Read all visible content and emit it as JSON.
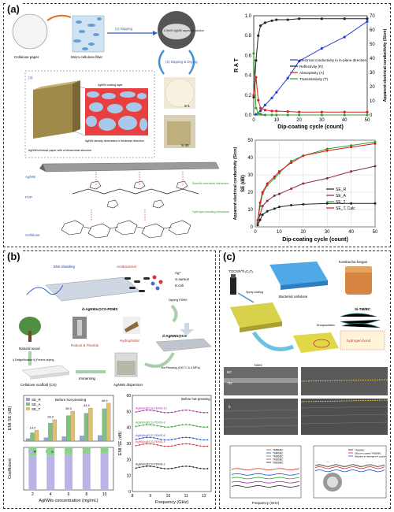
{
  "panel_a": {
    "tag": "(a)",
    "labels": {
      "cellulose_paper": "Cellulose paper",
      "micro_fiber": "Micro-cellulose fiber",
      "step1": "(1) Dipping",
      "step2": "(2) Dipping & Drying",
      "solution": "0.5wt% AgNW aqueous solution",
      "s1": "S-1",
      "s30": "S-30",
      "step3": "(3)",
      "coating": "AgNW coating layer",
      "density": "AgNW density decreases in thickness direction",
      "paper": "AgNW/cellulose paper with a hierarchical structure",
      "agnw": "AgNW",
      "pvp": "PVP",
      "cellulose": "Cellulose",
      "specific": "Specific interfacial interaction",
      "hbond": "Hydrogen bonding interaction"
    },
    "chart_rat": {
      "type": "line",
      "xlabel": "Dip-coating cycle (count)",
      "ylabel_left": "R A T",
      "ylabel_right": "Apparent electrical conductivity (S/cm)",
      "xlim": [
        0,
        50
      ],
      "ylim_left": [
        0.0,
        1.0
      ],
      "ylim_right": [
        0,
        70
      ],
      "xticks": [
        "0",
        "10",
        "20",
        "30",
        "40",
        "50"
      ],
      "yticks_left": [
        "0.0",
        "0.2",
        "0.4",
        "0.6",
        "0.8",
        "1.0"
      ],
      "yticks_right": [
        "0",
        "10",
        "20",
        "30",
        "40",
        "50",
        "60",
        "70"
      ],
      "legend": [
        "Electrical conductivity in in-plane direction",
        "Reflectivity (R)",
        "Absorptivity (A)",
        "Transmissivity (T)"
      ],
      "series": [
        {
          "name": "Electrical conductivity in in-plane direction",
          "axis": "right",
          "color": "#1f3fd6",
          "x": [
            1,
            3,
            5,
            8,
            10,
            15,
            20,
            30,
            40,
            50
          ],
          "y": [
            0.5,
            3,
            7,
            12,
            16,
            26,
            38,
            47,
            55,
            66
          ]
        },
        {
          "name": "Reflectivity (R)",
          "axis": "left",
          "color": "#222222",
          "x": [
            0,
            1,
            2,
            3,
            5,
            8,
            10,
            15,
            20,
            30,
            40,
            50
          ],
          "y": [
            0.18,
            0.55,
            0.8,
            0.9,
            0.93,
            0.95,
            0.96,
            0.96,
            0.97,
            0.97,
            0.97,
            0.97
          ]
        },
        {
          "name": "Absorptivity (A)",
          "axis": "left",
          "color": "#d62020",
          "x": [
            0,
            1,
            2,
            3,
            5,
            8,
            10,
            15,
            20,
            30,
            40,
            50
          ],
          "y": [
            0.2,
            0.38,
            0.15,
            0.07,
            0.05,
            0.04,
            0.04,
            0.035,
            0.03,
            0.03,
            0.03,
            0.03
          ]
        },
        {
          "name": "Transmissivity (T)",
          "axis": "left",
          "color": "#2fa32f",
          "x": [
            0,
            1,
            2,
            3,
            5,
            8,
            10,
            15,
            20,
            30,
            40,
            50
          ],
          "y": [
            0.62,
            0.07,
            0.02,
            0.01,
            0,
            0,
            0,
            0,
            0,
            0,
            0,
            0
          ]
        }
      ]
    },
    "chart_se": {
      "type": "line",
      "xlabel": "Dip-coating cycle (count)",
      "ylabel_left": "SE (dB)",
      "ylabel_right": "Apparent electrical conductivity (S/cm)",
      "xlim": [
        0,
        50
      ],
      "ylim": [
        0,
        50
      ],
      "xticks": [
        "0",
        "10",
        "20",
        "30",
        "40",
        "50"
      ],
      "yticks": [
        "0",
        "10",
        "20",
        "30",
        "40",
        "50"
      ],
      "legend": [
        "SE_R",
        "SE_A",
        "SE_T",
        "SE_T, Calc"
      ],
      "series": [
        {
          "name": "SE_R",
          "color": "#222222",
          "x": [
            1,
            2,
            3,
            5,
            8,
            10,
            15,
            20,
            30,
            40,
            50
          ],
          "y": [
            1,
            4,
            7,
            9,
            10.5,
            11.5,
            12.5,
            13,
            13.5,
            13.5,
            13.5
          ]
        },
        {
          "name": "SE_A",
          "color": "#8a2a4a",
          "x": [
            1,
            2,
            3,
            5,
            8,
            10,
            15,
            20,
            30,
            40,
            50
          ],
          "y": [
            2,
            7,
            12,
            15,
            18,
            19,
            22,
            25,
            28,
            32,
            35
          ]
        },
        {
          "name": "SE_T",
          "color": "#2fa32f",
          "x": [
            1,
            2,
            3,
            5,
            8,
            10,
            15,
            20,
            30,
            40,
            50
          ],
          "y": [
            3,
            12,
            19,
            24,
            28,
            31,
            38,
            41,
            45,
            47,
            49
          ]
        },
        {
          "name": "SE_T, Calc",
          "color": "#e01818",
          "x": [
            1,
            2,
            3,
            5,
            8,
            10,
            15,
            20,
            30,
            40,
            50
          ],
          "y": [
            4,
            14,
            20,
            25,
            29,
            32,
            37,
            41,
            44,
            46,
            48
          ]
        }
      ]
    }
  },
  "panel_b": {
    "tag": "(b)",
    "labels": {
      "emi": "EMI shielding",
      "antibacterial": "Antibacterial",
      "ag": "Ag⁺",
      "saureus": "S.aureus",
      "ecoli": "E.coli",
      "pdms_product": "d-AgNWs@CS-PDMS",
      "dipping": "Dipping PDMS",
      "natural_wood": "Natural wood",
      "robust": "Robust & Flexible",
      "hydrophobic": "Hydrophobic",
      "cs_product": "d-AgNWs@CS",
      "process": "i) Delignification ii) Freeze-drying",
      "hot_pressing": "Hot Pressing (100 °C & 5 MPa)",
      "scaffold": "Cellulose scaffold (CS)",
      "immersing": "Immersing",
      "dispersion": "AgNWs dispersion"
    },
    "chart_bar": {
      "type": "bar",
      "ylabel": "EMI SE (dB)",
      "xlabel": "AgNWs concentration (mg/mL)",
      "categories": [
        "2",
        "4",
        "6",
        "8",
        "10"
      ],
      "note": "Before hot-pressing",
      "legend": [
        "SE_R",
        "SE_A",
        "SE_T"
      ],
      "series": [
        {
          "name": "SE_R",
          "color": "#8ea7d8",
          "values": [
            3.3,
            4.5,
            5.8,
            6.9,
            7.4
          ]
        },
        {
          "name": "SE_A",
          "color": "#7fc07f",
          "values": [
            10.9,
            23.7,
            33.5,
            36.5,
            42.5
          ]
        },
        {
          "name": "SE_T",
          "color": "#e0c070",
          "values": [
            14.2,
            28.2,
            39.3,
            43.4,
            49.9
          ]
        }
      ],
      "data_labels": [
        "14.2",
        "28.2",
        "39.3",
        "43.4",
        "49.9"
      ]
    },
    "chart_coef": {
      "type": "bar",
      "ylabel": "Coefficient",
      "legend": [
        "R",
        "A"
      ],
      "categories": [
        "2",
        "4",
        "6",
        "8",
        "10"
      ],
      "series": [
        {
          "name": "R",
          "color": "#b9b3e6",
          "values": [
            0.8,
            0.81,
            0.83,
            0.85,
            0.86
          ]
        },
        {
          "name": "A",
          "color": "#8fd08f",
          "values": [
            0.2,
            0.19,
            0.17,
            0.15,
            0.14
          ]
        }
      ]
    },
    "chart_freq": {
      "type": "line",
      "ylabel": "EMI SE (dB)",
      "xlabel": "Frequency (GHz)",
      "note": "Before hot-pressing",
      "xlim": [
        8,
        12.4
      ],
      "ylim": [
        0,
        60
      ],
      "xticks": [
        "8",
        "9",
        "10",
        "11",
        "12"
      ],
      "yticks": [
        "0",
        "10",
        "20",
        "30",
        "40",
        "50",
        "60"
      ],
      "series": [
        {
          "name": "AgNWs@CS-PDMS-10",
          "color": "#b030b0",
          "level": 50
        },
        {
          "name": "AgNWs@CS-PDMS-8",
          "color": "#2fa32f",
          "level": 41
        },
        {
          "name": "AgNWs@CS-PDMS-6",
          "color": "#3050d0",
          "level": 33
        },
        {
          "name": "AgNWs@CS-PDMS-4",
          "color": "#e03030",
          "level": 29
        },
        {
          "name": "AgNWs@CS-PDMS-2",
          "color": "#222222",
          "level": 15
        }
      ]
    }
  },
  "panel_c": {
    "tag": "(c)",
    "labels": {
      "mxene": "TOCNF/Ti₃C₂Tₓ",
      "spray": "Spray coating",
      "bc": "Bacterial cellulose",
      "kombucha": "Kombucha fungus",
      "encapsulation": "Encapsulation",
      "product": "Si-TM/BC",
      "hbond": "hydrogen bond",
      "layer_bc": "BC",
      "layer_tm": "TM",
      "cross": "TM/BC",
      "sem_label": "b",
      "freq": "Frequency (GHz)"
    },
    "chart_left": {
      "type": "line",
      "xlim": [
        8,
        12.4
      ],
      "series": [
        {
          "name": "TM50/BC",
          "color": "#e03030",
          "level": 0.55
        },
        {
          "name": "TM40/BC",
          "color": "#2050d0",
          "level": 0.45
        },
        {
          "name": "TM30/BC",
          "color": "#2fa32f",
          "level": 0.38
        },
        {
          "name": "TM20/BC",
          "color": "#a030a0",
          "level": 0.3
        },
        {
          "name": "TM10/BC",
          "color": "#222222",
          "level": 0.22
        }
      ]
    },
    "chart_right": {
      "type": "line",
      "legend": [
        "TM50/BC",
        "Silicone coated TM50/BC",
        "Washed in detergent 4 cycles"
      ],
      "series": [
        {
          "name": "TM50/BC",
          "color": "#222222",
          "level": 0.62
        },
        {
          "name": "Silicone coated TM50/BC",
          "color": "#d03030",
          "level": 0.58
        },
        {
          "name": "Washed in detergent 4 cycles",
          "color": "#2050d0",
          "level": 0.52
        }
      ]
    }
  }
}
